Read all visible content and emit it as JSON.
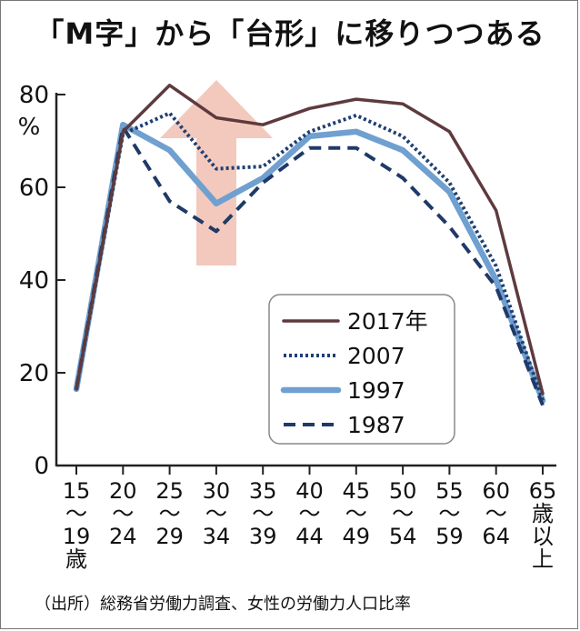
{
  "chart_data": {
    "type": "line",
    "title": "「M字」から「台形」に移りつつある",
    "ylabel": "%",
    "ylim": [
      0,
      80
    ],
    "yticks": [
      0,
      20,
      40,
      60,
      80
    ],
    "y_top_label": "80",
    "categories": [
      [
        "15",
        "〜",
        "19",
        "歳"
      ],
      [
        "20",
        "〜",
        "24"
      ],
      [
        "25",
        "〜",
        "29"
      ],
      [
        "30",
        "〜",
        "34"
      ],
      [
        "35",
        "〜",
        "39"
      ],
      [
        "40",
        "〜",
        "44"
      ],
      [
        "45",
        "〜",
        "49"
      ],
      [
        "50",
        "〜",
        "54"
      ],
      [
        "55",
        "〜",
        "59"
      ],
      [
        "60",
        "〜",
        "64"
      ],
      [
        "65",
        "歳",
        "以",
        "上"
      ]
    ],
    "series": [
      {
        "name": "2017年",
        "style": "solid",
        "color": "#5e3a3e",
        "values": [
          16.5,
          72,
          82,
          75,
          73.5,
          77,
          79,
          78,
          72,
          55,
          15.5
        ]
      },
      {
        "name": "2007",
        "style": "dotted",
        "color": "#1f3f73",
        "values": [
          16.5,
          71.5,
          76,
          64,
          64.5,
          72,
          75.5,
          71,
          61,
          43,
          14
        ]
      },
      {
        "name": "1997",
        "style": "thick",
        "color": "#6fa0d0",
        "values": [
          16.5,
          73.5,
          68,
          56.5,
          62,
          71,
          72,
          68,
          59,
          40,
          14
        ]
      },
      {
        "name": "1987",
        "style": "dashed",
        "color": "#1f3a68",
        "values": [
          16.5,
          73,
          57,
          50.5,
          61,
          68.5,
          68.5,
          62,
          51.5,
          38.5,
          13
        ]
      }
    ],
    "annotation": "upward-arrow",
    "colors": {
      "arrow": "#f2c3b6",
      "frame": "#777777",
      "legend_border": "#888888"
    }
  },
  "source": "（出所）総務省労働力調査、女性の労働力人口比率"
}
